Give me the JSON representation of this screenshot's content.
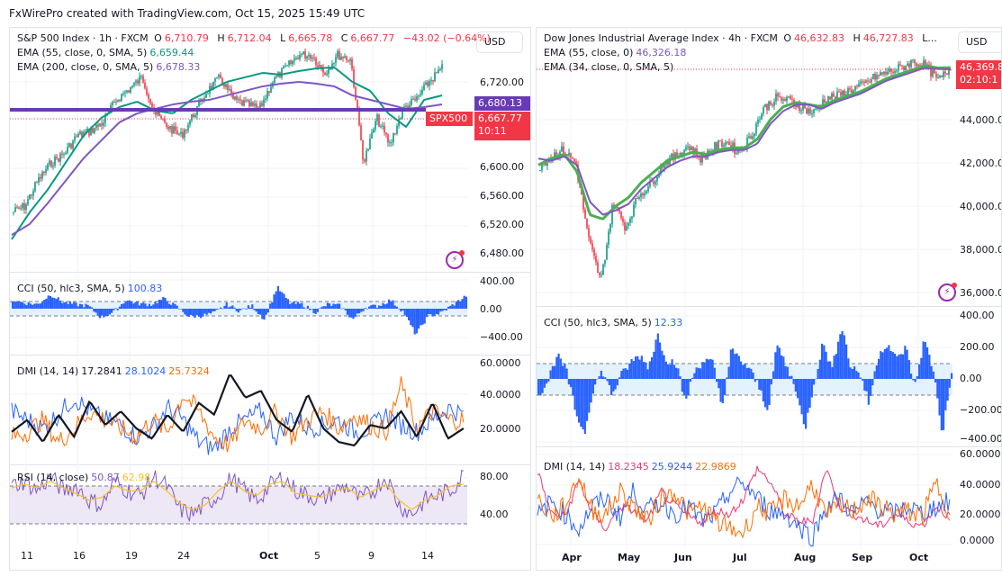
{
  "caption": "FxWirePro created with TradingView.com, Oct 15, 2025 15:49 UTC",
  "colors": {
    "up": "#089981",
    "down": "#f23645",
    "ema55_spx": "#089981",
    "ema200": "#7e57c2",
    "cci": "#2962ff",
    "dmi_adx": "#131722",
    "dmi_plus": "#2962ff",
    "dmi_minus": "#ff6d00",
    "rsi": "#7e57c2",
    "rsi_ma": "#f7c325",
    "resistance": "#673ab7",
    "dji_ema55": "#7e57c2",
    "dji_ema34": "#4caf50",
    "dmi_pink": "#f23674"
  },
  "left": {
    "symbol": "S&P 500 Index · 1h · FXCM",
    "ohlc": {
      "o_label": "O",
      "o": "6,710.79",
      "h_label": "H",
      "h": "6,712.04",
      "l_label": "L",
      "l": "6,665.78",
      "c_label": "C",
      "c": "6,667.77",
      "change": "−43.02 (−0.64%)"
    },
    "currency": "USD",
    "ema1": {
      "label": "EMA (55, close, 0, SMA, 5)",
      "value": "6,659.44"
    },
    "ema2": {
      "label": "EMA (200, close, 0, SMA, 5)",
      "value": "6,678.33"
    },
    "price_axis": [
      "6,720.00",
      "6,600.00",
      "6,560.00",
      "6,520.00",
      "6,480.00"
    ],
    "resistance_tag": "6,680.13",
    "symbol_tag": "SPX500",
    "last_price": "6,667.77",
    "countdown": "10:11",
    "cci": {
      "label": "CCI (50, hlc3, SMA, 5)",
      "value": "100.83",
      "axis": [
        "400.00",
        "0.00",
        "−400.00"
      ]
    },
    "dmi": {
      "label": "DMI (14, 14)",
      "adx": "17.2841",
      "plus": "28.1024",
      "minus": "25.7324",
      "axis": [
        "60.0000",
        "40.0000",
        "20.0000"
      ]
    },
    "rsi": {
      "label": "RSI (14, close)",
      "value": "50.87",
      "ma": "62.98",
      "axis": [
        "80.00",
        "40.00"
      ]
    },
    "time_axis": [
      {
        "label": "11",
        "bold": false
      },
      {
        "label": "16",
        "bold": false
      },
      {
        "label": "19",
        "bold": false
      },
      {
        "label": "24",
        "bold": false
      },
      {
        "label": "Oct",
        "bold": true
      },
      {
        "label": "5",
        "bold": false
      },
      {
        "label": "9",
        "bold": false
      },
      {
        "label": "14",
        "bold": false
      }
    ]
  },
  "right": {
    "symbol": "Dow Jones Industrial Average Index · 4h · FXCM",
    "ohlc": {
      "o_label": "O",
      "o": "46,632.83",
      "h_label": "H",
      "h": "46,727.83",
      "truncated": "L..."
    },
    "currency": "USD",
    "ema1": {
      "label": "EMA (55, close, 0)",
      "value": "46,326.18"
    },
    "ema2": {
      "label": "EMA (34, close, 0, SMA, 5)"
    },
    "price_axis": [
      "44,000.00",
      "42,000.00",
      "40,000.00",
      "38,000.00",
      "36,000.00"
    ],
    "last_price": "46,369.8",
    "countdown": "02:10:1",
    "cci": {
      "label": "CCI (50, hlc3, SMA, 5)",
      "value": "12.33",
      "axis": [
        "400.00",
        "200.00",
        "0.00",
        "−200.00",
        "−400.00"
      ]
    },
    "dmi": {
      "label": "DMI (14, 14)",
      "v1": "18.2345",
      "v2": "25.9244",
      "v3": "22.9869",
      "axis": [
        "60.0000",
        "40.0000",
        "20.0000",
        "0.0000"
      ]
    },
    "time_axis": [
      {
        "label": "Apr",
        "bold": true
      },
      {
        "label": "May",
        "bold": true
      },
      {
        "label": "Jun",
        "bold": true
      },
      {
        "label": "Jul",
        "bold": true
      },
      {
        "label": "Aug",
        "bold": true
      },
      {
        "label": "Sep",
        "bold": true
      },
      {
        "label": "Oct",
        "bold": true
      }
    ]
  }
}
